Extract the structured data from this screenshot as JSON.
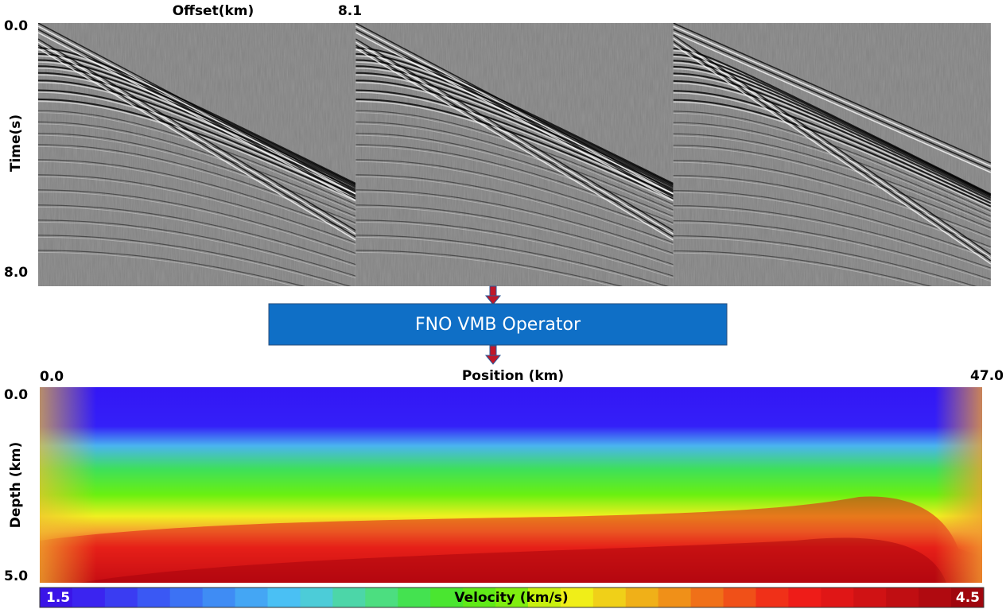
{
  "seismic": {
    "x_label": "Offset(km)",
    "x_max": "8.1",
    "y_label": "Time(s)",
    "y_min": "0.0",
    "y_max": "8.0"
  },
  "operator": {
    "label": "FNO VMB Operator"
  },
  "velocity_model": {
    "x_label": "Position (km)",
    "x_min": "0.0",
    "x_max": "47.0",
    "y_label": "Depth (km)",
    "y_min": "0.0",
    "y_max": "5.0",
    "colorbar": {
      "label": "Velocity (km/s)",
      "min": "1.5",
      "max": "4.5"
    }
  }
}
